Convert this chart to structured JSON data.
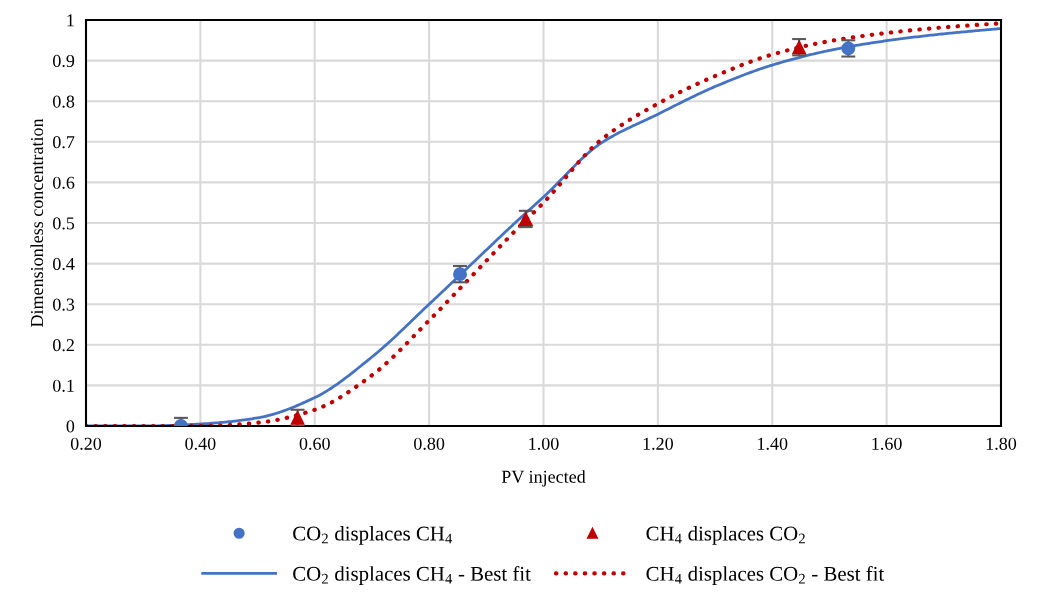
{
  "chart_data": {
    "type": "scatter",
    "xlabel": "PV injected",
    "ylabel": "Dimensionless concentration",
    "xlim": [
      0.2,
      1.8
    ],
    "xticks": [
      {
        "value": 0.2,
        "label": "0.20"
      },
      {
        "value": 0.4,
        "label": "0.40"
      },
      {
        "value": 0.6,
        "label": "0.60"
      },
      {
        "value": 0.8,
        "label": "0.80"
      },
      {
        "value": 1.0,
        "label": "1.00"
      },
      {
        "value": 1.2,
        "label": "1.20"
      },
      {
        "value": 1.4,
        "label": "1.40"
      },
      {
        "value": 1.6,
        "label": "1.60"
      },
      {
        "value": 1.8,
        "label": "1.80"
      }
    ],
    "ylim": [
      0,
      1
    ],
    "yticks": [
      0,
      0.1,
      0.2,
      0.3,
      0.4,
      0.5,
      0.6,
      0.7,
      0.8,
      0.9,
      1
    ],
    "grid": true,
    "legend": "bottom",
    "series": [
      {
        "name": "CO$_{2}$ displaces CH$_{4}$",
        "marker": "circle",
        "color": "#4472c4",
        "x": [
          0.366,
          0.854,
          1.533
        ],
        "values": [
          0.0,
          0.374,
          0.93
        ],
        "errors": [
          0.02,
          0.02,
          0.02
        ]
      },
      {
        "name": "CH$_{4}$ displaces CO$_{2}$",
        "marker": "triangle",
        "color": "#c00000",
        "x": [
          0.57,
          0.969,
          1.447
        ],
        "values": [
          0.02,
          0.51,
          0.933
        ],
        "errors": [
          0.02,
          0.02,
          0.02
        ]
      },
      {
        "name": "CO$_{2}$ displaces CH$_{4}$ - Best fit",
        "type": "line",
        "line_style": "solid",
        "color": "#4472c4",
        "x": [
          0.2,
          0.3,
          0.4,
          0.5,
          0.6,
          0.7,
          0.8,
          0.875,
          0.95,
          1.0,
          1.1,
          1.2,
          1.3,
          1.4,
          1.5,
          1.6,
          1.7,
          1.8
        ],
        "values": [
          0,
          0,
          0.005,
          0.02,
          0.07,
          0.17,
          0.3,
          0.4,
          0.5,
          0.564,
          0.696,
          0.768,
          0.836,
          0.889,
          0.925,
          0.949,
          0.966,
          0.979
        ]
      },
      {
        "name": "CH$_{4}$ displaces CO$_{2}$ - Best fit",
        "type": "line",
        "line_style": "dotted",
        "color": "#c00000",
        "x": [
          0.2,
          0.3,
          0.4,
          0.5,
          0.6,
          0.7,
          0.8,
          0.875,
          0.95,
          1.0,
          1.1,
          1.2,
          1.3,
          1.4,
          1.5,
          1.6,
          1.7,
          1.8
        ],
        "values": [
          0,
          0,
          0,
          0.008,
          0.04,
          0.125,
          0.26,
          0.37,
          0.48,
          0.55,
          0.704,
          0.794,
          0.862,
          0.915,
          0.948,
          0.968,
          0.982,
          0.992
        ]
      }
    ]
  }
}
